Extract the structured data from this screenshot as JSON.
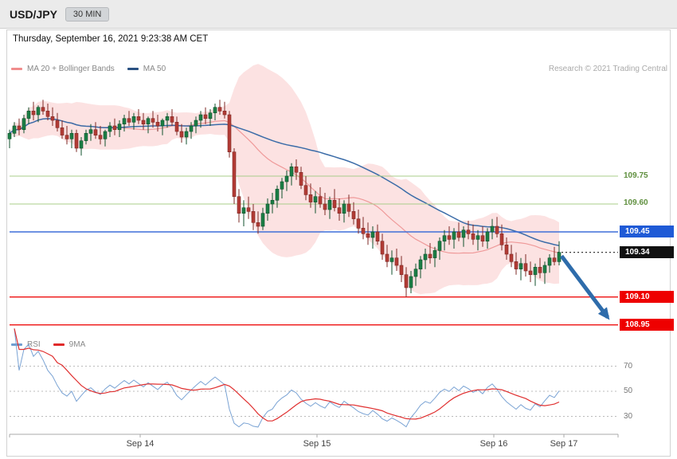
{
  "header": {
    "symbol": "USD/JPY",
    "timeframe": "30 MIN"
  },
  "timestamp": "Thursday, September 16, 2021 9:23:38 AM CET",
  "legend": {
    "main": [
      {
        "label": "MA 20 + Bollinger Bands",
        "color": "#f08c8c"
      },
      {
        "label": "MA 50",
        "color": "#2a5182"
      }
    ],
    "research": "Research © 2021 Trading Central",
    "indicator": [
      {
        "label": "RSI",
        "color": "#6f9ed1"
      },
      {
        "label": "9MA",
        "color": "#e02a2a"
      }
    ]
  },
  "chart_data": {
    "type": "candlestick",
    "symbol": "USD/JPY",
    "interval": "30 MIN",
    "x_labels": [
      "Sep 14",
      "Sep 15",
      "Sep 16",
      "Sep 17"
    ],
    "rsi_gridlines": [
      70,
      50,
      30
    ],
    "price_levels": [
      {
        "label": "109.75",
        "price": 109.75,
        "line_color": "#a8cc8a",
        "text_color": "#5f8f3e",
        "badge": false
      },
      {
        "label": "109.60",
        "price": 109.6,
        "line_color": "#a8cc8a",
        "text_color": "#5f8f3e",
        "badge": false
      },
      {
        "label": "109.45",
        "price": 109.45,
        "line_color": "#3f6fd8",
        "badge": true,
        "badge_color": "#1f5ad6"
      },
      {
        "label": "109.34",
        "price": 109.34,
        "line_color": "#222222",
        "badge": true,
        "badge_color": "#111111",
        "dotted": true,
        "last_price": true
      },
      {
        "label": "109.10",
        "price": 109.1,
        "line_color": "#ee1111",
        "badge": true,
        "badge_color": "#ee0000"
      },
      {
        "label": "108.95",
        "price": 108.95,
        "line_color": "#ee1111",
        "badge": true,
        "badge_color": "#ee0000"
      }
    ],
    "projection_arrow": {
      "from_price": 109.32,
      "to_price": 108.99,
      "color": "#2e6cab"
    },
    "indicators": {
      "bollinger_period": 20,
      "bollinger_stddev": 2,
      "ma_period": 50,
      "rsi_period": 14,
      "rsi_ma_period": 9
    },
    "colors": {
      "candle_up": "#1b7e45",
      "candle_down": "#b23b35",
      "band_fill": "#f7b9b9",
      "ma20": "#ef9a9a",
      "ma50": "#3b6ca8",
      "rsi": "#7aa3d4",
      "rsi_ma": "#e03030"
    },
    "ohlc_format": [
      "open",
      "high",
      "low",
      "close"
    ],
    "candles": [
      [
        109.95,
        110.0,
        109.9,
        109.98
      ],
      [
        109.98,
        110.04,
        109.96,
        110.02
      ],
      [
        110.02,
        110.06,
        109.97,
        110.0
      ],
      [
        110.0,
        110.08,
        109.98,
        110.06
      ],
      [
        110.06,
        110.12,
        110.03,
        110.1
      ],
      [
        110.1,
        110.15,
        110.05,
        110.08
      ],
      [
        110.08,
        110.13,
        110.04,
        110.12
      ],
      [
        110.12,
        110.16,
        110.08,
        110.1
      ],
      [
        110.1,
        110.14,
        110.05,
        110.07
      ],
      [
        110.07,
        110.12,
        110.02,
        110.05
      ],
      [
        110.05,
        110.09,
        109.99,
        110.01
      ],
      [
        110.01,
        110.05,
        109.95,
        109.97
      ],
      [
        109.97,
        110.02,
        109.92,
        109.95
      ],
      [
        109.95,
        110.0,
        109.9,
        109.98
      ],
      [
        109.98,
        110.0,
        109.88,
        109.9
      ],
      [
        109.9,
        109.96,
        109.86,
        109.94
      ],
      [
        109.94,
        110.0,
        109.92,
        109.98
      ],
      [
        109.98,
        110.03,
        109.94,
        110.0
      ],
      [
        110.0,
        110.04,
        109.95,
        109.97
      ],
      [
        109.97,
        110.02,
        109.92,
        109.95
      ],
      [
        109.95,
        110.0,
        109.91,
        109.99
      ],
      [
        109.99,
        110.04,
        109.96,
        110.02
      ],
      [
        110.02,
        110.06,
        109.97,
        110.0
      ],
      [
        110.0,
        110.05,
        109.96,
        110.03
      ],
      [
        110.03,
        110.08,
        109.99,
        110.06
      ],
      [
        110.06,
        110.1,
        110.02,
        110.04
      ],
      [
        110.04,
        110.09,
        110.0,
        110.07
      ],
      [
        110.07,
        110.11,
        110.03,
        110.05
      ],
      [
        110.05,
        110.09,
        110.0,
        110.03
      ],
      [
        110.03,
        110.07,
        109.98,
        110.06
      ],
      [
        110.06,
        110.1,
        110.01,
        110.04
      ],
      [
        110.04,
        110.08,
        109.99,
        110.02
      ],
      [
        110.02,
        110.06,
        109.97,
        110.05
      ],
      [
        110.05,
        110.09,
        110.01,
        110.07
      ],
      [
        110.07,
        110.11,
        110.02,
        110.04
      ],
      [
        110.04,
        110.07,
        109.97,
        109.99
      ],
      [
        109.99,
        110.03,
        109.93,
        109.96
      ],
      [
        109.96,
        110.01,
        109.92,
        109.99
      ],
      [
        109.99,
        110.04,
        109.95,
        110.02
      ],
      [
        110.02,
        110.07,
        109.98,
        110.05
      ],
      [
        110.05,
        110.1,
        110.01,
        110.08
      ],
      [
        110.08,
        110.12,
        110.03,
        110.06
      ],
      [
        110.06,
        110.11,
        110.02,
        110.09
      ],
      [
        110.09,
        110.14,
        110.05,
        110.12
      ],
      [
        110.12,
        110.16,
        110.08,
        110.1
      ],
      [
        110.1,
        110.15,
        110.06,
        110.08
      ],
      [
        110.08,
        110.1,
        109.85,
        109.88
      ],
      [
        109.88,
        109.9,
        109.6,
        109.64
      ],
      [
        109.64,
        109.68,
        109.5,
        109.55
      ],
      [
        109.55,
        109.62,
        109.48,
        109.58
      ],
      [
        109.58,
        109.64,
        109.52,
        109.56
      ],
      [
        109.56,
        109.6,
        109.46,
        109.5
      ],
      [
        109.5,
        109.56,
        109.44,
        109.48
      ],
      [
        109.48,
        109.58,
        109.46,
        109.55
      ],
      [
        109.55,
        109.63,
        109.51,
        109.6
      ],
      [
        109.6,
        109.66,
        109.55,
        109.62
      ],
      [
        109.62,
        109.7,
        109.58,
        109.68
      ],
      [
        109.68,
        109.74,
        109.63,
        109.72
      ],
      [
        109.72,
        109.78,
        109.67,
        109.75
      ],
      [
        109.75,
        109.82,
        109.7,
        109.8
      ],
      [
        109.8,
        109.84,
        109.73,
        109.77
      ],
      [
        109.77,
        109.8,
        109.68,
        109.7
      ],
      [
        109.7,
        109.75,
        109.62,
        109.65
      ],
      [
        109.65,
        109.71,
        109.58,
        109.61
      ],
      [
        109.61,
        109.67,
        109.55,
        109.64
      ],
      [
        109.64,
        109.69,
        109.58,
        109.6
      ],
      [
        109.6,
        109.66,
        109.54,
        109.57
      ],
      [
        109.57,
        109.64,
        109.52,
        109.62
      ],
      [
        109.62,
        109.68,
        109.56,
        109.58
      ],
      [
        109.58,
        109.63,
        109.51,
        109.55
      ],
      [
        109.55,
        109.62,
        109.5,
        109.6
      ],
      [
        109.6,
        109.65,
        109.53,
        109.56
      ],
      [
        109.56,
        109.61,
        109.49,
        109.52
      ],
      [
        109.52,
        109.57,
        109.44,
        109.47
      ],
      [
        109.47,
        109.53,
        109.41,
        109.44
      ],
      [
        109.44,
        109.5,
        109.38,
        109.42
      ],
      [
        109.42,
        109.48,
        109.36,
        109.45
      ],
      [
        109.45,
        109.49,
        109.38,
        109.4
      ],
      [
        109.4,
        109.44,
        109.3,
        109.33
      ],
      [
        109.33,
        109.38,
        109.26,
        109.29
      ],
      [
        109.29,
        109.35,
        109.22,
        109.31
      ],
      [
        109.31,
        109.36,
        109.24,
        109.27
      ],
      [
        109.27,
        109.32,
        109.18,
        109.22
      ],
      [
        109.22,
        109.26,
        109.1,
        109.15
      ],
      [
        109.15,
        109.24,
        109.12,
        109.21
      ],
      [
        109.21,
        109.28,
        109.16,
        109.25
      ],
      [
        109.25,
        109.32,
        109.2,
        109.3
      ],
      [
        109.3,
        109.36,
        109.25,
        109.33
      ],
      [
        109.33,
        109.39,
        109.28,
        109.31
      ],
      [
        109.31,
        109.37,
        109.26,
        109.35
      ],
      [
        109.35,
        109.42,
        109.3,
        109.4
      ],
      [
        109.4,
        109.46,
        109.35,
        109.43
      ],
      [
        109.43,
        109.48,
        109.38,
        109.41
      ],
      [
        109.41,
        109.47,
        109.36,
        109.45
      ],
      [
        109.45,
        109.5,
        109.4,
        109.42
      ],
      [
        109.42,
        109.48,
        109.37,
        109.46
      ],
      [
        109.46,
        109.51,
        109.41,
        109.44
      ],
      [
        109.44,
        109.49,
        109.38,
        109.41
      ],
      [
        109.41,
        109.46,
        109.35,
        109.43
      ],
      [
        109.43,
        109.48,
        109.37,
        109.4
      ],
      [
        109.4,
        109.47,
        109.36,
        109.45
      ],
      [
        109.45,
        109.52,
        109.41,
        109.48
      ],
      [
        109.48,
        109.53,
        109.42,
        109.44
      ],
      [
        109.44,
        109.49,
        109.35,
        109.38
      ],
      [
        109.38,
        109.42,
        109.3,
        109.33
      ],
      [
        109.33,
        109.38,
        109.26,
        109.29
      ],
      [
        109.29,
        109.34,
        109.22,
        109.25
      ],
      [
        109.25,
        109.31,
        109.19,
        109.28
      ],
      [
        109.28,
        109.33,
        109.21,
        109.24
      ],
      [
        109.24,
        109.29,
        109.18,
        109.22
      ],
      [
        109.22,
        109.28,
        109.16,
        109.26
      ],
      [
        109.26,
        109.31,
        109.2,
        109.23
      ],
      [
        109.23,
        109.29,
        109.17,
        109.27
      ],
      [
        109.27,
        109.33,
        109.23,
        109.31
      ],
      [
        109.31,
        109.37,
        109.27,
        109.29
      ],
      [
        109.29,
        109.4,
        109.27,
        109.34
      ]
    ]
  }
}
